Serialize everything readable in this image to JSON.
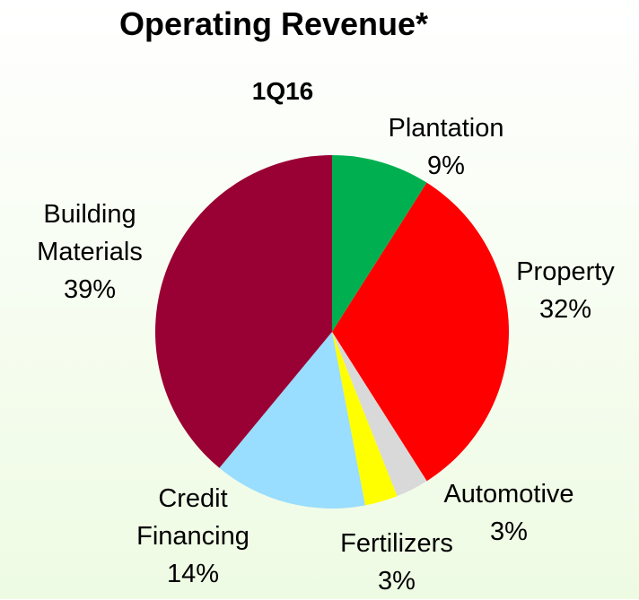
{
  "chart_data": {
    "type": "pie",
    "title": "Operating Revenue*",
    "subtitle": "1Q16",
    "categories": [
      "Plantation",
      "Property",
      "Automotive",
      "Fertilizers",
      "Credit Financing",
      "Building Materials"
    ],
    "values": [
      9,
      32,
      3,
      3,
      14,
      39
    ],
    "value_labels": [
      "9%",
      "32%",
      "3%",
      "3%",
      "14%",
      "39%"
    ],
    "colors": [
      "#00b050",
      "#ff0000",
      "#d9d9d9",
      "#ffff00",
      "#99ddff",
      "#990033"
    ]
  }
}
